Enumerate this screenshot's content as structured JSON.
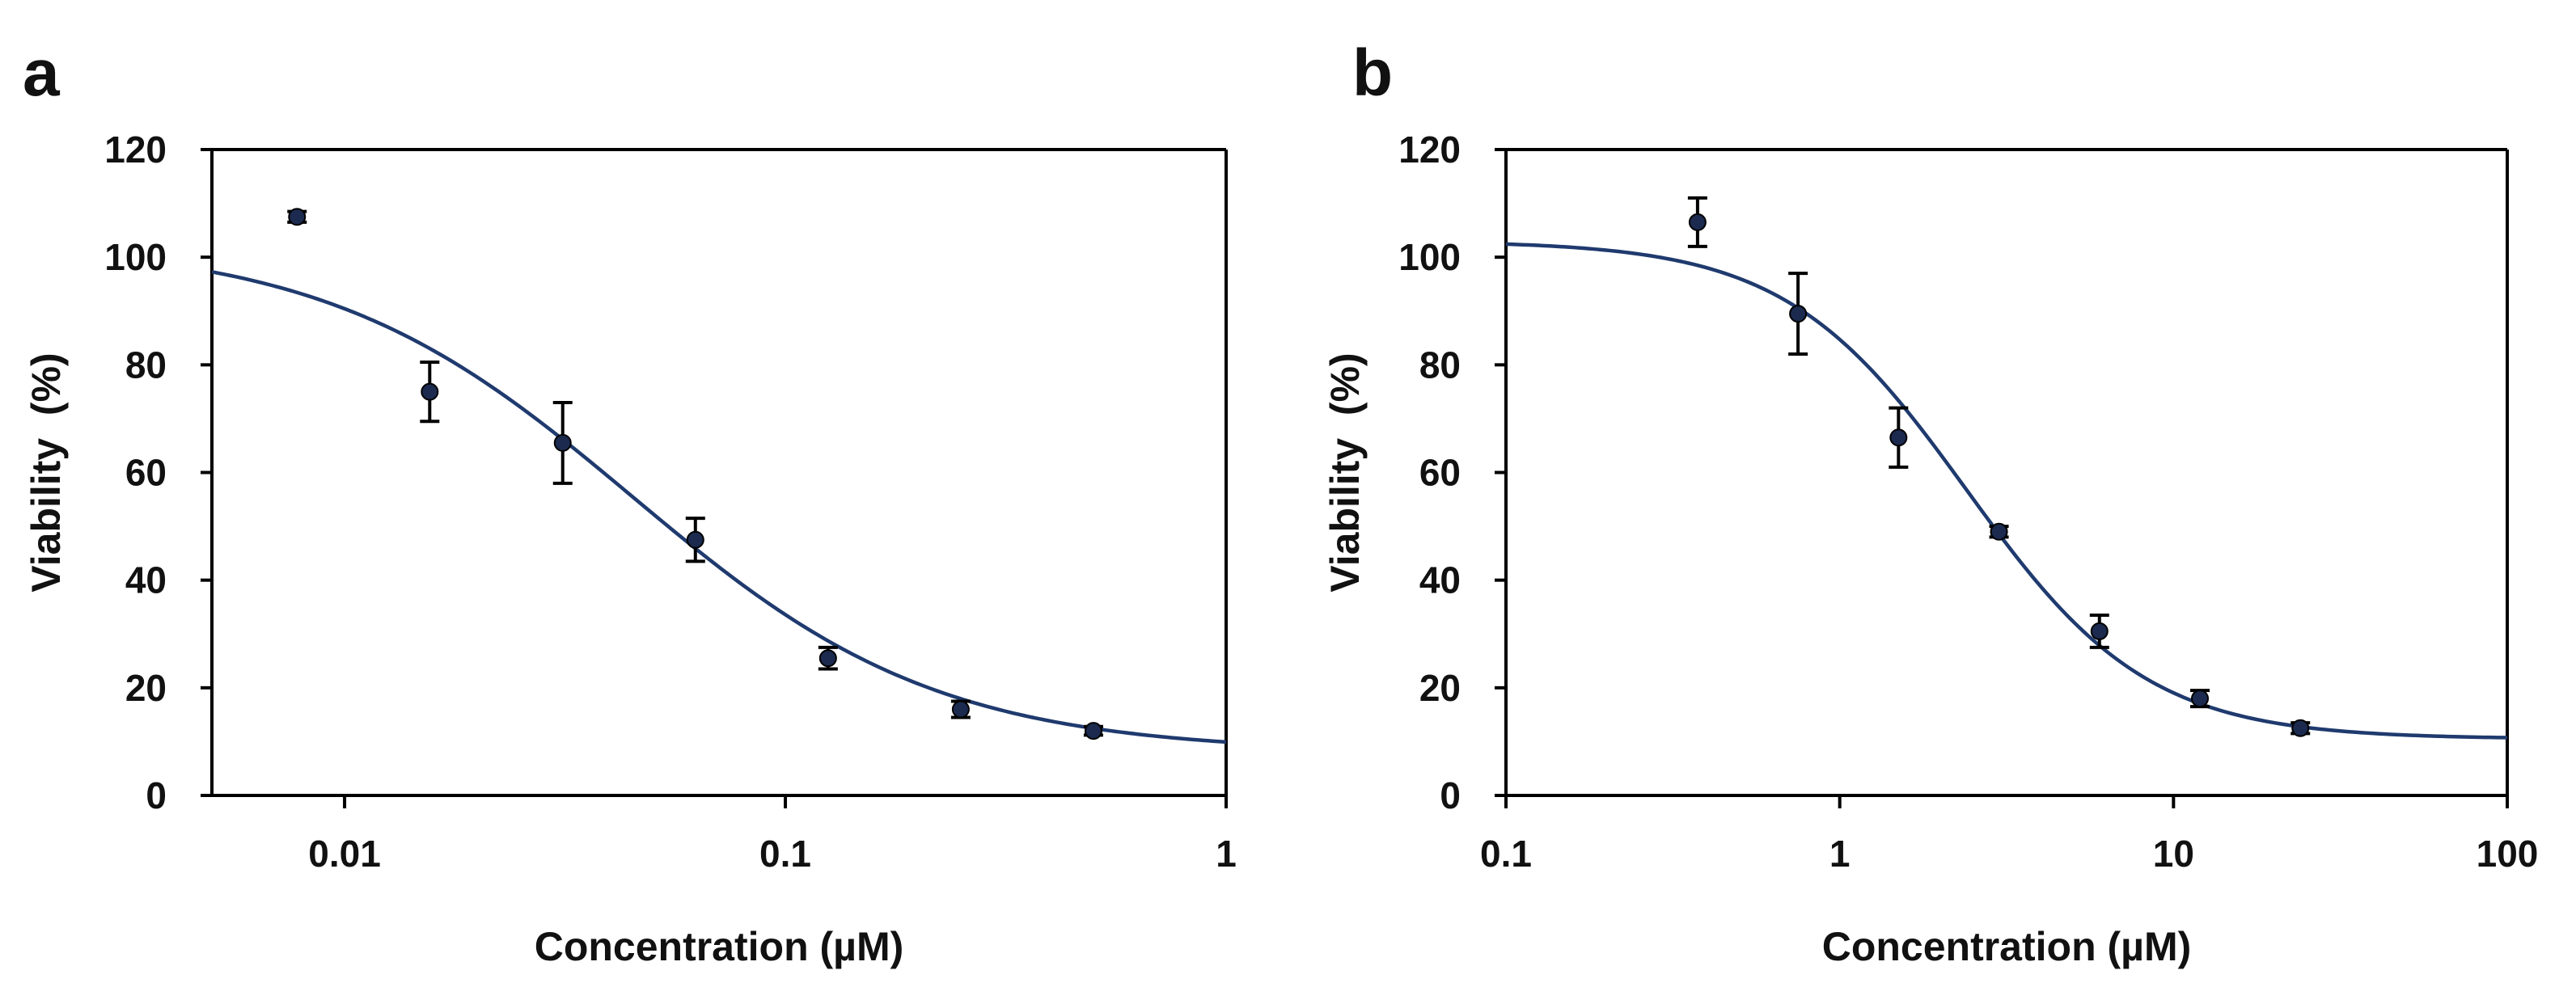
{
  "chart_data": [
    {
      "panel_label": "a",
      "type": "scatter",
      "xscale": "log",
      "xlim": [
        0.005,
        1
      ],
      "ylim": [
        0,
        120
      ],
      "xticks": [
        0.01,
        0.1,
        1
      ],
      "xtick_labels": [
        "0.01",
        "0.1",
        "1"
      ],
      "yticks": [
        0,
        20,
        40,
        60,
        80,
        100,
        120
      ],
      "ytick_labels": [
        "0",
        "20",
        "40",
        "60",
        "80",
        "100",
        "120"
      ],
      "xlabel": "Concentration (µM)",
      "ylabel": "Viability  (%)",
      "grid": false,
      "legend": "none",
      "marker_color": "#1b2a4e",
      "curve_color": "#1f3a6e",
      "points": [
        {
          "x": 0.0078,
          "y": 107.5,
          "err": 1.0
        },
        {
          "x": 0.0156,
          "y": 75.0,
          "err": 5.5
        },
        {
          "x": 0.03125,
          "y": 65.5,
          "err": 7.5
        },
        {
          "x": 0.0625,
          "y": 47.5,
          "err": 4.0
        },
        {
          "x": 0.125,
          "y": 25.5,
          "err": 2.0
        },
        {
          "x": 0.25,
          "y": 16.0,
          "err": 1.5
        },
        {
          "x": 0.5,
          "y": 12.0,
          "err": 0.8
        }
      ],
      "fit": {
        "model": "4PL",
        "bottom": 8,
        "top": 103,
        "ic50": 0.045,
        "hill": 1.25
      }
    },
    {
      "panel_label": "b",
      "type": "scatter",
      "xscale": "log",
      "xlim": [
        0.1,
        100
      ],
      "ylim": [
        0,
        120
      ],
      "xticks": [
        0.1,
        1,
        10,
        100
      ],
      "xtick_labels": [
        "0.1",
        "1",
        "10",
        "100"
      ],
      "yticks": [
        0,
        20,
        40,
        60,
        80,
        100,
        120
      ],
      "ytick_labels": [
        "0",
        "20",
        "40",
        "60",
        "80",
        "100",
        "120"
      ],
      "xlabel": "Concentration (µM)",
      "ylabel": "Viability  (%)",
      "grid": false,
      "legend": "none",
      "marker_color": "#1b2a4e",
      "curve_color": "#1f3a6e",
      "points": [
        {
          "x": 0.375,
          "y": 106.5,
          "err": 4.5
        },
        {
          "x": 0.75,
          "y": 89.5,
          "err": 7.5
        },
        {
          "x": 1.5,
          "y": 66.5,
          "err": 5.5
        },
        {
          "x": 3.0,
          "y": 49.0,
          "err": 1.0
        },
        {
          "x": 6.0,
          "y": 30.5,
          "err": 3.0
        },
        {
          "x": 12.0,
          "y": 18.0,
          "err": 1.5
        },
        {
          "x": 24.0,
          "y": 12.5,
          "err": 1.0
        }
      ],
      "fit": {
        "model": "4PL",
        "bottom": 10.5,
        "top": 103,
        "ic50": 2.4,
        "hill": 1.6
      }
    }
  ]
}
